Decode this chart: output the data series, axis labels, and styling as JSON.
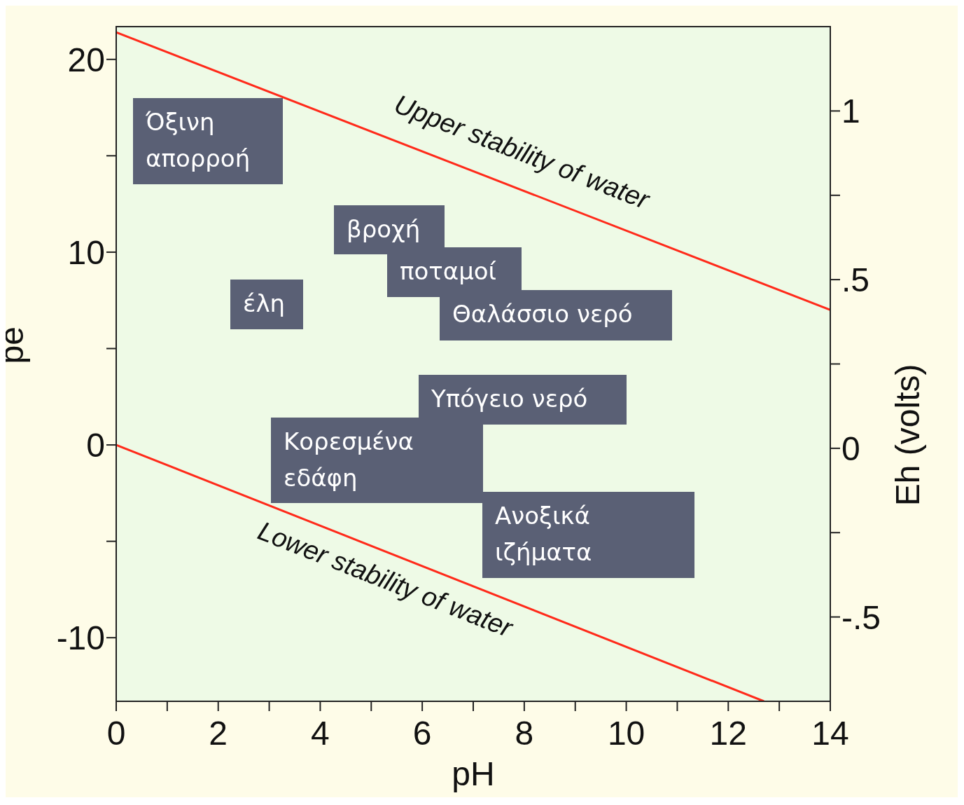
{
  "chart_data": {
    "type": "line",
    "xlabel": "pH",
    "ylabel": "pe",
    "y2label": "Eh (volts)",
    "xlim": [
      0,
      14
    ],
    "ylim": [
      -13.3,
      21.7
    ],
    "y2lim": [
      -0.75,
      1.25
    ],
    "xticks": [
      0,
      {
        "value": 1,
        "label": null
      },
      2,
      {
        "value": 3,
        "label": null
      },
      4,
      {
        "value": 5,
        "label": null
      },
      6,
      {
        "value": 7,
        "label": null
      },
      8,
      {
        "value": 9,
        "label": null
      },
      10,
      {
        "value": 11,
        "label": null
      },
      12,
      {
        "value": 13,
        "label": null
      },
      14
    ],
    "yticks": [
      -10,
      {
        "value": -5,
        "label": null
      },
      0,
      {
        "value": 5,
        "label": null
      },
      10,
      {
        "value": 15,
        "label": null
      },
      20
    ],
    "y2ticks": [
      {
        "value": -0.5,
        "label": "-.5"
      },
      {
        "value": -0.25,
        "label": null
      },
      0,
      {
        "value": 0.25,
        "label": null
      },
      {
        "value": 0.5,
        "label": ".5"
      },
      {
        "value": 0.75,
        "label": null
      },
      1
    ],
    "series": [
      {
        "name": "Upper stability of water",
        "color": "#ff2a1a",
        "x": [
          0,
          14
        ],
        "values": [
          21.4,
          7.0
        ]
      },
      {
        "name": "Lower stability of water",
        "color": "#ff2a1a",
        "x": [
          0,
          12.7
        ],
        "values": [
          0,
          -13.3
        ]
      }
    ],
    "annotations": [
      "Όξινη απορροή",
      "βροχή",
      "ποταμοί",
      "Θαλάσσιο νερό",
      "έλη",
      "Υπόγειο νερό",
      "Κορεσμένα εδάφη",
      "Ανοξικά ιζήματα"
    ],
    "legend": false,
    "marker": "none",
    "line_style": "solid"
  }
}
